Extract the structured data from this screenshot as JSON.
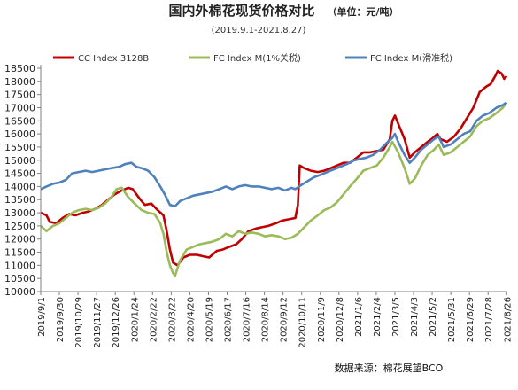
{
  "chart_data": {
    "type": "line",
    "title": "国内外棉花现货价格对比",
    "unit": "（单位：元/吨）",
    "subtitle": "(2019.9.1-2021.8.27)",
    "source": "数据来源：棉花展望BCO",
    "ylim": [
      10000,
      18500
    ],
    "yticks": [
      10000,
      10500,
      11000,
      11500,
      12000,
      12500,
      13000,
      13500,
      14000,
      14500,
      15000,
      15500,
      16000,
      16500,
      17000,
      17500,
      18000,
      18500
    ],
    "x_range": [
      "2019-09-01",
      "2021-08-27"
    ],
    "x_tick_labels": [
      "2019/9/1",
      "2019/9/30",
      "2019/10/29",
      "2019/11/27",
      "2019/12/26",
      "2020/1/24",
      "2020/2/22",
      "2020/3/22",
      "2020/4/20",
      "2020/5/19",
      "2020/6/17",
      "2020/7/16",
      "2020/8/14",
      "2020/9/12",
      "2020/10/11",
      "2020/11/9",
      "2020/12/8",
      "2021/1/6",
      "2021/2/4",
      "2021/3/5",
      "2021/4/3",
      "2021/5/2",
      "2021/5/31",
      "2021/6/29",
      "2021/7/28",
      "2021/8/26"
    ],
    "grid": false,
    "legend_position": "top",
    "series": [
      {
        "name": "CC Index 3128B",
        "color": "#c00000",
        "points": [
          [
            "2019-09-01",
            13000
          ],
          [
            "2019-09-10",
            12900
          ],
          [
            "2019-09-15",
            12650
          ],
          [
            "2019-09-25",
            12600
          ],
          [
            "2019-10-05",
            12800
          ],
          [
            "2019-10-15",
            12950
          ],
          [
            "2019-10-25",
            12900
          ],
          [
            "2019-11-05",
            13000
          ],
          [
            "2019-11-15",
            13050
          ],
          [
            "2019-11-25",
            13150
          ],
          [
            "2019-12-05",
            13300
          ],
          [
            "2019-12-15",
            13500
          ],
          [
            "2019-12-25",
            13700
          ],
          [
            "2020-01-05",
            13850
          ],
          [
            "2020-01-15",
            13950
          ],
          [
            "2020-01-22",
            13900
          ],
          [
            "2020-02-03",
            13500
          ],
          [
            "2020-02-10",
            13300
          ],
          [
            "2020-02-20",
            13350
          ],
          [
            "2020-03-01",
            13100
          ],
          [
            "2020-03-10",
            12900
          ],
          [
            "2020-03-15",
            12300
          ],
          [
            "2020-03-20",
            11600
          ],
          [
            "2020-03-25",
            11100
          ],
          [
            "2020-04-01",
            11000
          ],
          [
            "2020-04-10",
            11300
          ],
          [
            "2020-04-20",
            11400
          ],
          [
            "2020-05-01",
            11400
          ],
          [
            "2020-05-10",
            11350
          ],
          [
            "2020-05-20",
            11300
          ],
          [
            "2020-06-01",
            11550
          ],
          [
            "2020-06-10",
            11600
          ],
          [
            "2020-06-20",
            11700
          ],
          [
            "2020-07-01",
            11800
          ],
          [
            "2020-07-10",
            12000
          ],
          [
            "2020-07-20",
            12300
          ],
          [
            "2020-08-01",
            12400
          ],
          [
            "2020-08-10",
            12450
          ],
          [
            "2020-08-20",
            12500
          ],
          [
            "2020-09-01",
            12600
          ],
          [
            "2020-09-10",
            12700
          ],
          [
            "2020-09-20",
            12750
          ],
          [
            "2020-10-01",
            12800
          ],
          [
            "2020-10-05",
            13300
          ],
          [
            "2020-10-08",
            14800
          ],
          [
            "2020-10-15",
            14700
          ],
          [
            "2020-10-25",
            14600
          ],
          [
            "2020-11-05",
            14550
          ],
          [
            "2020-11-15",
            14600
          ],
          [
            "2020-11-25",
            14700
          ],
          [
            "2020-12-05",
            14800
          ],
          [
            "2020-12-15",
            14900
          ],
          [
            "2020-12-25",
            14900
          ],
          [
            "2021-01-05",
            15100
          ],
          [
            "2021-01-15",
            15300
          ],
          [
            "2021-01-25",
            15300
          ],
          [
            "2021-02-05",
            15350
          ],
          [
            "2021-02-15",
            15400
          ],
          [
            "2021-02-25",
            15800
          ],
          [
            "2021-03-01",
            16500
          ],
          [
            "2021-03-05",
            16700
          ],
          [
            "2021-03-10",
            16400
          ],
          [
            "2021-03-20",
            15800
          ],
          [
            "2021-03-28",
            15100
          ],
          [
            "2021-04-05",
            15300
          ],
          [
            "2021-04-15",
            15500
          ],
          [
            "2021-04-25",
            15700
          ],
          [
            "2021-05-01",
            15800
          ],
          [
            "2021-05-10",
            16000
          ],
          [
            "2021-05-15",
            15800
          ],
          [
            "2021-05-25",
            15700
          ],
          [
            "2021-06-05",
            15900
          ],
          [
            "2021-06-15",
            16200
          ],
          [
            "2021-06-25",
            16600
          ],
          [
            "2021-07-05",
            17000
          ],
          [
            "2021-07-15",
            17600
          ],
          [
            "2021-07-25",
            17800
          ],
          [
            "2021-08-01",
            17900
          ],
          [
            "2021-08-08",
            18200
          ],
          [
            "2021-08-12",
            18400
          ],
          [
            "2021-08-18",
            18300
          ],
          [
            "2021-08-22",
            18100
          ],
          [
            "2021-08-26",
            18200
          ]
        ]
      },
      {
        "name": "FC Index M(1%关税)",
        "color": "#9bbb59",
        "points": [
          [
            "2019-09-01",
            12500
          ],
          [
            "2019-09-10",
            12300
          ],
          [
            "2019-09-20",
            12500
          ],
          [
            "2019-09-30",
            12600
          ],
          [
            "2019-10-10",
            12800
          ],
          [
            "2019-10-20",
            13000
          ],
          [
            "2019-10-30",
            13100
          ],
          [
            "2019-11-10",
            13150
          ],
          [
            "2019-11-20",
            13100
          ],
          [
            "2019-12-01",
            13200
          ],
          [
            "2019-12-10",
            13350
          ],
          [
            "2019-12-20",
            13600
          ],
          [
            "2019-12-28",
            13900
          ],
          [
            "2020-01-05",
            13950
          ],
          [
            "2020-01-15",
            13600
          ],
          [
            "2020-01-25",
            13350
          ],
          [
            "2020-02-05",
            13100
          ],
          [
            "2020-02-15",
            13000
          ],
          [
            "2020-02-25",
            12950
          ],
          [
            "2020-03-05",
            12600
          ],
          [
            "2020-03-10",
            12200
          ],
          [
            "2020-03-15",
            11500
          ],
          [
            "2020-03-20",
            11000
          ],
          [
            "2020-03-25",
            10700
          ],
          [
            "2020-03-28",
            10600
          ],
          [
            "2020-04-05",
            11200
          ],
          [
            "2020-04-15",
            11600
          ],
          [
            "2020-04-25",
            11700
          ],
          [
            "2020-05-05",
            11800
          ],
          [
            "2020-05-15",
            11850
          ],
          [
            "2020-05-25",
            11900
          ],
          [
            "2020-06-05",
            12000
          ],
          [
            "2020-06-15",
            12200
          ],
          [
            "2020-06-25",
            12100
          ],
          [
            "2020-07-05",
            12300
          ],
          [
            "2020-07-15",
            12200
          ],
          [
            "2020-07-25",
            12250
          ],
          [
            "2020-08-05",
            12200
          ],
          [
            "2020-08-15",
            12100
          ],
          [
            "2020-08-25",
            12150
          ],
          [
            "2020-09-05",
            12100
          ],
          [
            "2020-09-15",
            12000
          ],
          [
            "2020-09-25",
            12050
          ],
          [
            "2020-10-05",
            12200
          ],
          [
            "2020-10-15",
            12450
          ],
          [
            "2020-10-25",
            12700
          ],
          [
            "2020-11-05",
            12900
          ],
          [
            "2020-11-15",
            13100
          ],
          [
            "2020-11-25",
            13200
          ],
          [
            "2020-12-05",
            13400
          ],
          [
            "2020-12-15",
            13700
          ],
          [
            "2020-12-25",
            14000
          ],
          [
            "2021-01-05",
            14300
          ],
          [
            "2021-01-15",
            14600
          ],
          [
            "2021-01-25",
            14700
          ],
          [
            "2021-02-05",
            14800
          ],
          [
            "2021-02-15",
            15100
          ],
          [
            "2021-02-25",
            15500
          ],
          [
            "2021-03-01",
            15700
          ],
          [
            "2021-03-10",
            15300
          ],
          [
            "2021-03-20",
            14700
          ],
          [
            "2021-03-28",
            14100
          ],
          [
            "2021-04-05",
            14300
          ],
          [
            "2021-04-15",
            14800
          ],
          [
            "2021-04-25",
            15200
          ],
          [
            "2021-05-05",
            15400
          ],
          [
            "2021-05-12",
            15600
          ],
          [
            "2021-05-20",
            15200
          ],
          [
            "2021-05-31",
            15300
          ],
          [
            "2021-06-10",
            15500
          ],
          [
            "2021-06-20",
            15700
          ],
          [
            "2021-06-30",
            15900
          ],
          [
            "2021-07-10",
            16300
          ],
          [
            "2021-07-20",
            16500
          ],
          [
            "2021-07-30",
            16600
          ],
          [
            "2021-08-10",
            16800
          ],
          [
            "2021-08-20",
            17000
          ],
          [
            "2021-08-26",
            17200
          ]
        ]
      },
      {
        "name": "FC Index M(滑准税)",
        "color": "#4f81bd",
        "points": [
          [
            "2019-09-01",
            13900
          ],
          [
            "2019-09-10",
            14000
          ],
          [
            "2019-09-20",
            14100
          ],
          [
            "2019-09-30",
            14150
          ],
          [
            "2019-10-10",
            14250
          ],
          [
            "2019-10-20",
            14500
          ],
          [
            "2019-10-30",
            14550
          ],
          [
            "2019-11-10",
            14600
          ],
          [
            "2019-11-20",
            14550
          ],
          [
            "2019-11-30",
            14600
          ],
          [
            "2019-12-10",
            14650
          ],
          [
            "2019-12-20",
            14700
          ],
          [
            "2020-01-01",
            14750
          ],
          [
            "2020-01-10",
            14850
          ],
          [
            "2020-01-20",
            14900
          ],
          [
            "2020-01-28",
            14750
          ],
          [
            "2020-02-05",
            14700
          ],
          [
            "2020-02-15",
            14600
          ],
          [
            "2020-02-25",
            14350
          ],
          [
            "2020-03-05",
            14000
          ],
          [
            "2020-03-12",
            13700
          ],
          [
            "2020-03-20",
            13300
          ],
          [
            "2020-03-28",
            13250
          ],
          [
            "2020-04-05",
            13450
          ],
          [
            "2020-04-15",
            13550
          ],
          [
            "2020-04-25",
            13650
          ],
          [
            "2020-05-05",
            13700
          ],
          [
            "2020-05-15",
            13750
          ],
          [
            "2020-05-25",
            13800
          ],
          [
            "2020-06-05",
            13900
          ],
          [
            "2020-06-15",
            14000
          ],
          [
            "2020-06-25",
            13900
          ],
          [
            "2020-07-05",
            14000
          ],
          [
            "2020-07-15",
            14050
          ],
          [
            "2020-07-25",
            14000
          ],
          [
            "2020-08-05",
            14000
          ],
          [
            "2020-08-15",
            13950
          ],
          [
            "2020-08-25",
            13900
          ],
          [
            "2020-09-05",
            13950
          ],
          [
            "2020-09-15",
            13850
          ],
          [
            "2020-09-25",
            13950
          ],
          [
            "2020-10-01",
            13900
          ],
          [
            "2020-10-10",
            14050
          ],
          [
            "2020-10-20",
            14200
          ],
          [
            "2020-10-30",
            14350
          ],
          [
            "2020-11-10",
            14450
          ],
          [
            "2020-11-20",
            14550
          ],
          [
            "2020-11-30",
            14650
          ],
          [
            "2020-12-10",
            14750
          ],
          [
            "2020-12-20",
            14850
          ],
          [
            "2021-01-01",
            15000
          ],
          [
            "2021-01-10",
            15050
          ],
          [
            "2021-01-20",
            15100
          ],
          [
            "2021-01-30",
            15200
          ],
          [
            "2021-02-10",
            15400
          ],
          [
            "2021-02-20",
            15650
          ],
          [
            "2021-03-01",
            15850
          ],
          [
            "2021-03-05",
            16000
          ],
          [
            "2021-03-10",
            15700
          ],
          [
            "2021-03-20",
            15200
          ],
          [
            "2021-03-28",
            14900
          ],
          [
            "2021-04-05",
            15100
          ],
          [
            "2021-04-15",
            15400
          ],
          [
            "2021-04-25",
            15600
          ],
          [
            "2021-05-05",
            15800
          ],
          [
            "2021-05-12",
            15900
          ],
          [
            "2021-05-20",
            15500
          ],
          [
            "2021-05-31",
            15600
          ],
          [
            "2021-06-10",
            15800
          ],
          [
            "2021-06-20",
            16000
          ],
          [
            "2021-06-30",
            16100
          ],
          [
            "2021-07-10",
            16500
          ],
          [
            "2021-07-20",
            16700
          ],
          [
            "2021-07-30",
            16800
          ],
          [
            "2021-08-10",
            17000
          ],
          [
            "2021-08-20",
            17100
          ],
          [
            "2021-08-26",
            17200
          ]
        ]
      }
    ]
  }
}
